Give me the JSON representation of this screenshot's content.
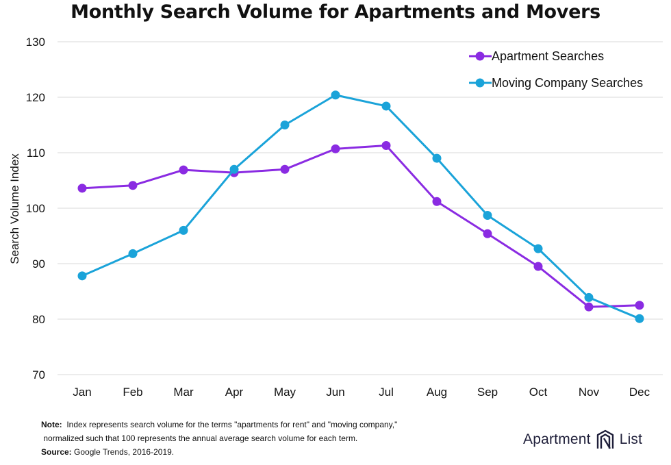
{
  "chart_data": {
    "type": "line",
    "title": "Monthly Search Volume for Apartments and Movers",
    "xlabel": "",
    "ylabel": "Search Volume Index",
    "ylim": [
      70,
      130
    ],
    "yticks": [
      70,
      80,
      90,
      100,
      110,
      120,
      130
    ],
    "categories": [
      "Jan",
      "Feb",
      "Mar",
      "Apr",
      "May",
      "Jun",
      "Jul",
      "Aug",
      "Sep",
      "Oct",
      "Nov",
      "Dec"
    ],
    "grid": "horizontal",
    "legend_position": "top-right",
    "series": [
      {
        "name": "Apartment Searches",
        "color": "#8a2be2",
        "values": [
          103.6,
          104.1,
          106.9,
          106.4,
          107.0,
          110.7,
          111.3,
          101.2,
          95.4,
          89.5,
          82.2,
          82.5
        ]
      },
      {
        "name": "Moving Company Searches",
        "color": "#1aa3d9",
        "values": [
          87.8,
          91.8,
          96.0,
          107.0,
          115.0,
          120.4,
          118.4,
          109.0,
          98.7,
          92.7,
          83.9,
          80.1
        ]
      }
    ]
  },
  "footnote": {
    "note_label": "Note:",
    "note_line1": "Index represents search volume for the terms \"apartments for rent\" and \"moving company,\"",
    "note_line2": "normalized such that 100 represents the annual average search volume for each term.",
    "source_label": "Source:",
    "source_text": "Google Trends, 2016-2019."
  },
  "brand": {
    "word1": "Apartment",
    "word2": "List",
    "logo": "apartment-list-logo-icon"
  }
}
